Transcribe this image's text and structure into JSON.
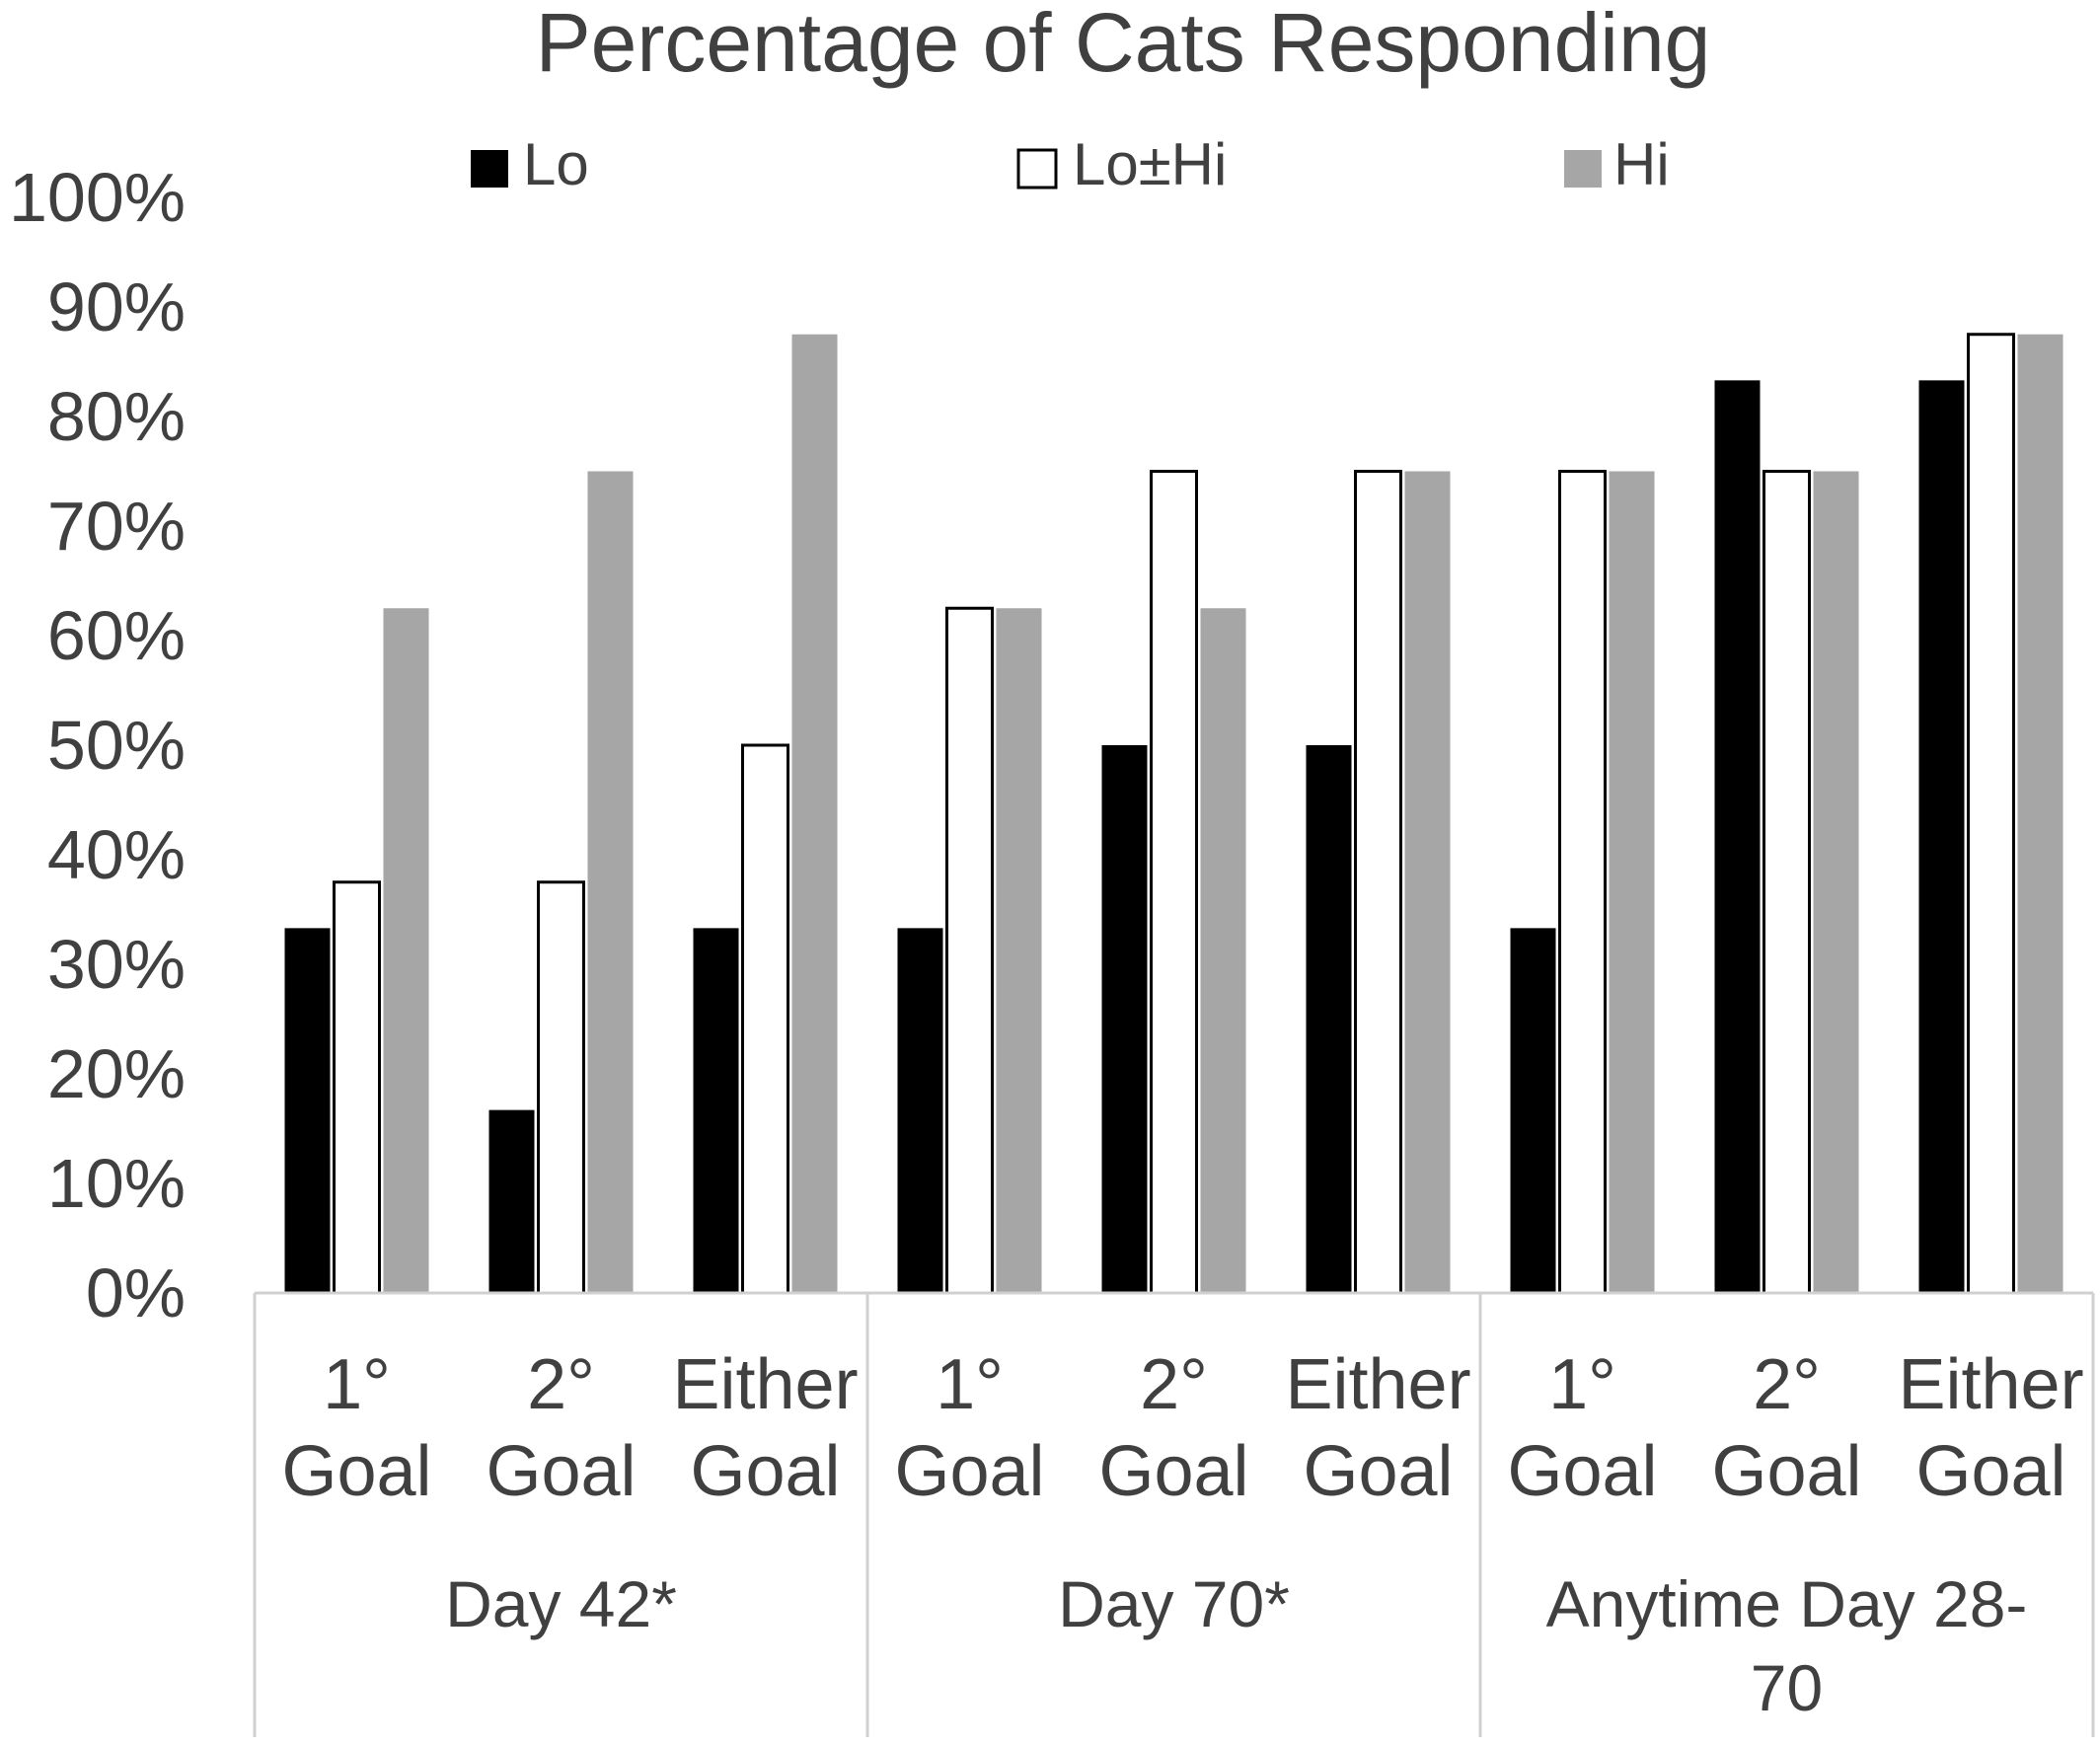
{
  "chart_data": {
    "type": "bar",
    "title": "Percentage of Cats Responding",
    "xlabel": "",
    "ylabel": "",
    "ylim": [
      0,
      100
    ],
    "yticks": [
      "0%",
      "10%",
      "20%",
      "30%",
      "40%",
      "50%",
      "60%",
      "70%",
      "80%",
      "90%",
      "100%"
    ],
    "grid": false,
    "legend_position": "top",
    "groups": [
      {
        "label": "Day 42*",
        "categories": [
          [
            "1°",
            "Goal"
          ],
          [
            "2°",
            "Goal"
          ],
          [
            "Either",
            "Goal"
          ]
        ]
      },
      {
        "label": "Day 70*",
        "categories": [
          [
            "1°",
            "Goal"
          ],
          [
            "2°",
            "Goal"
          ],
          [
            "Either",
            "Goal"
          ]
        ]
      },
      {
        "label": [
          "Anytime Day 28-",
          "70"
        ],
        "categories": [
          [
            "1°",
            "Goal"
          ],
          [
            "2°",
            "Goal"
          ],
          [
            "Either",
            "Goal"
          ]
        ]
      }
    ],
    "series": [
      {
        "name": "Lo",
        "color": "#000000",
        "values": [
          33.3,
          16.7,
          33.3,
          33.3,
          50,
          50,
          33.3,
          83.3,
          83.3
        ]
      },
      {
        "name": "Lo±Hi",
        "color": "#ffffff",
        "values": [
          37.5,
          37.5,
          50,
          62.5,
          75,
          75,
          75,
          75,
          87.5
        ]
      },
      {
        "name": "Hi",
        "color": "#a6a6a6",
        "values": [
          62.5,
          75,
          87.5,
          62.5,
          62.5,
          75,
          75,
          75,
          87.5
        ]
      }
    ]
  }
}
